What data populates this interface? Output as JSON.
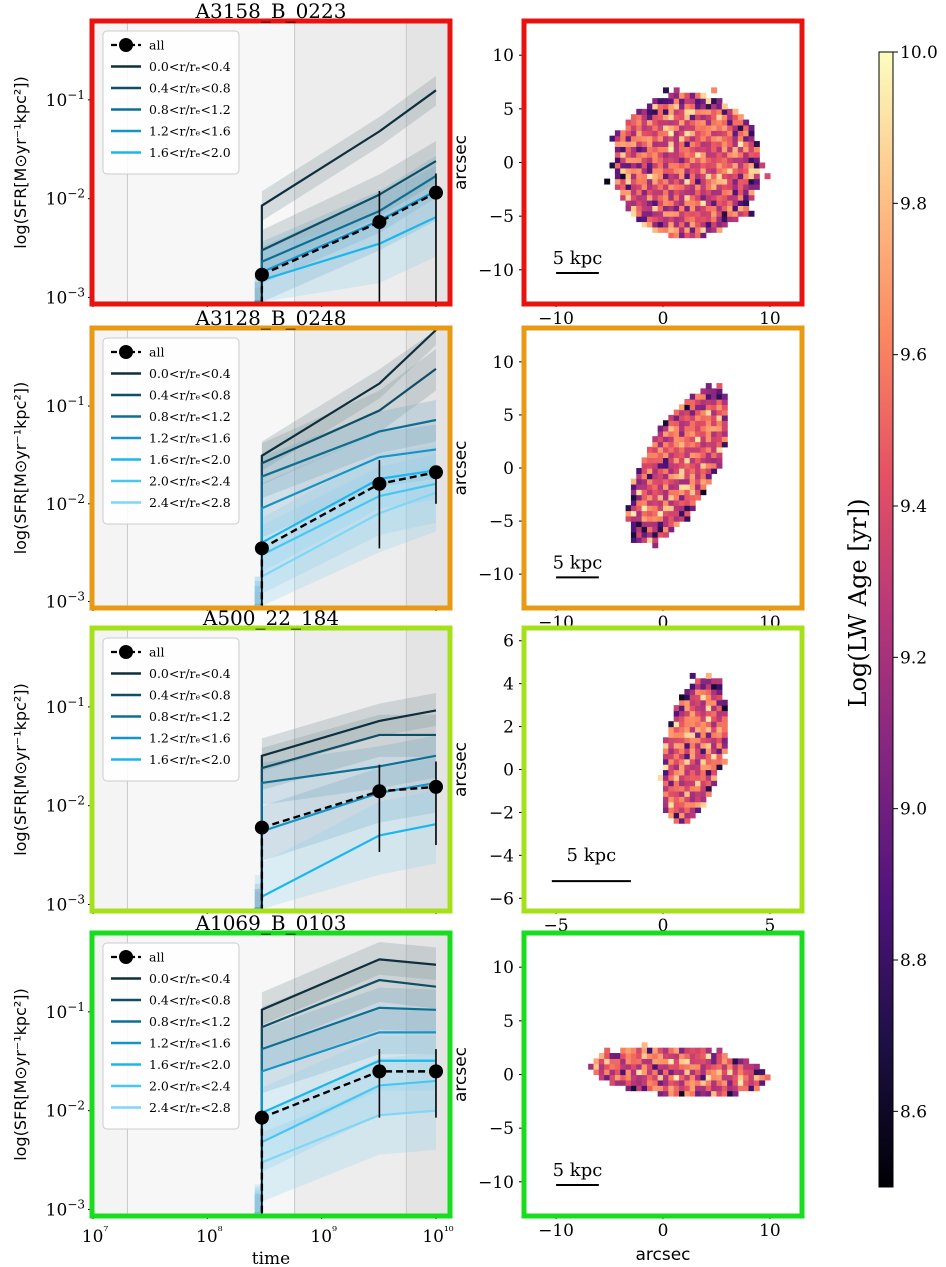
{
  "chart_data": [
    {
      "type": "line",
      "title": "A3158_B_0223",
      "frame_color": "#e8130e",
      "xlabel": "",
      "ylabel": "log(SFR[M⊙yr⁻¹kpc²])",
      "xscale": "log",
      "yscale": "log",
      "xlim": [
        10000000.0,
        13000000000.0
      ],
      "ylim": [
        0.0009,
        0.6
      ],
      "legend_position": "upper-left",
      "series": [
        {
          "name": "all",
          "x": [
            300000000.0,
            3200000000.0,
            10000000000.0
          ],
          "values": [
            0.0017,
            0.0058,
            0.0115
          ],
          "color": "#000000",
          "style": "dashed-markers",
          "err_low": [
            0.0005,
            0.0009,
            0.0009
          ],
          "err_high": [
            0.0017,
            0.012,
            0.018
          ]
        },
        {
          "name": "0.0<r/rₑ<0.4",
          "x": [
            260000000.0,
            300000000.0,
            300000000.0,
            3200000000.0,
            10000000000.0
          ],
          "values": [
            0.0009,
            0.0009,
            0.0085,
            0.048,
            0.125
          ],
          "color": "#0e2f3d",
          "band": [
            0.7,
            1.4
          ]
        },
        {
          "name": "0.4<r/rₑ<0.8",
          "x": [
            260000000.0,
            300000000.0,
            300000000.0,
            3200000000.0,
            10000000000.0
          ],
          "values": [
            0.0009,
            0.0009,
            0.003,
            0.011,
            0.024
          ],
          "color": "#0f4f66",
          "band": [
            0.6,
            1.6
          ]
        },
        {
          "name": "0.8<r/rₑ<1.2",
          "x": [
            260000000.0,
            300000000.0,
            300000000.0,
            3200000000.0,
            10000000000.0
          ],
          "values": [
            0.0009,
            0.0009,
            0.0023,
            0.0075,
            0.017
          ],
          "color": "#0f6f93",
          "band": [
            0.6,
            1.6
          ]
        },
        {
          "name": "1.2<r/rₑ<1.6",
          "x": [
            260000000.0,
            300000000.0,
            300000000.0,
            3200000000.0,
            10000000000.0
          ],
          "values": [
            0.0009,
            0.0009,
            0.0018,
            0.006,
            0.012
          ],
          "color": "#1494c8",
          "band": [
            0.5,
            1.8
          ]
        },
        {
          "name": "1.6<r/rₑ<2.0",
          "x": [
            260000000.0,
            300000000.0,
            300000000.0,
            3200000000.0,
            10000000000.0
          ],
          "values": [
            0.0009,
            0.0009,
            0.0015,
            0.0035,
            0.0065
          ],
          "color": "#1ab7ee",
          "band": [
            0.4,
            2.0
          ]
        }
      ],
      "map": {
        "xlabel": "",
        "ylabel": "arcsec",
        "xlim": [
          -13,
          13
        ],
        "ylim": [
          -13,
          13
        ],
        "xticks": [
          -10,
          0,
          10
        ],
        "yticks": [
          10,
          5,
          0,
          -5,
          -10
        ],
        "scalebar_label": "5 kpc",
        "shape": "circle",
        "center": [
          2,
          -0.5
        ],
        "axes": [
          7,
          6.7
        ],
        "angle": 0
      }
    },
    {
      "type": "line",
      "title": "A3128_B_0248",
      "frame_color": "#e89a13",
      "xlabel": "",
      "ylabel": "log(SFR[M⊙yr⁻¹kpc²])",
      "xscale": "log",
      "yscale": "log",
      "xlim": [
        10000000.0,
        13000000000.0
      ],
      "ylim": [
        0.0009,
        0.6
      ],
      "legend_position": "upper-left",
      "series": [
        {
          "name": "all",
          "x": [
            300000000.0,
            3200000000.0,
            10000000000.0
          ],
          "values": [
            0.0035,
            0.016,
            0.021
          ],
          "color": "#000000",
          "style": "dashed-markers",
          "err_low": [
            0.0009,
            0.0035,
            0.01
          ],
          "err_high": [
            0.0035,
            0.028,
            0.021
          ]
        },
        {
          "name": "0.0<r/rₑ<0.4",
          "x": [
            260000000.0,
            300000000.0,
            300000000.0,
            3200000000.0,
            10000000000.0
          ],
          "values": [
            0.0009,
            0.0009,
            0.031,
            0.17,
            0.6
          ],
          "color": "#0e2f3d",
          "band": [
            0.7,
            1.4
          ]
        },
        {
          "name": "0.4<r/rₑ<0.8",
          "x": [
            260000000.0,
            300000000.0,
            300000000.0,
            3200000000.0,
            10000000000.0
          ],
          "values": [
            0.0009,
            0.0009,
            0.026,
            0.09,
            0.24
          ],
          "color": "#0f4f66",
          "band": [
            0.6,
            1.6
          ]
        },
        {
          "name": "0.8<r/rₑ<1.2",
          "x": [
            260000000.0,
            300000000.0,
            300000000.0,
            3200000000.0,
            10000000000.0
          ],
          "values": [
            0.0009,
            0.0009,
            0.019,
            0.055,
            0.072
          ],
          "color": "#0f6f93",
          "band": [
            0.6,
            1.6
          ]
        },
        {
          "name": "1.2<r/rₑ<1.6",
          "x": [
            260000000.0,
            300000000.0,
            300000000.0,
            3200000000.0,
            10000000000.0
          ],
          "values": [
            0.0009,
            0.0009,
            0.009,
            0.03,
            0.036
          ],
          "color": "#1494c8",
          "band": [
            0.5,
            1.8
          ]
        },
        {
          "name": "1.6<r/rₑ<2.0",
          "x": [
            260000000.0,
            300000000.0,
            300000000.0,
            3200000000.0,
            10000000000.0
          ],
          "values": [
            0.0009,
            0.0009,
            0.004,
            0.018,
            0.022
          ],
          "color": "#1ab7ee",
          "band": [
            0.5,
            1.8
          ]
        },
        {
          "name": "2.0<r/rₑ<2.4",
          "x": [
            260000000.0,
            300000000.0,
            300000000.0,
            3200000000.0,
            10000000000.0
          ],
          "values": [
            0.0009,
            0.0009,
            0.003,
            0.012,
            0.016
          ],
          "color": "#47c6f2",
          "band": [
            0.4,
            2.0
          ]
        },
        {
          "name": "2.4<r/rₑ<2.8",
          "x": [
            260000000.0,
            300000000.0,
            300000000.0,
            3200000000.0,
            10000000000.0
          ],
          "values": [
            0.0009,
            0.0009,
            0.0018,
            0.008,
            0.013
          ],
          "color": "#7fd6f6",
          "band": [
            0.4,
            2.0
          ]
        }
      ],
      "map": {
        "xlabel": "",
        "ylabel": "arcsec",
        "xlim": [
          -13,
          13
        ],
        "ylim": [
          -13,
          13
        ],
        "xticks": [
          -10,
          0,
          10
        ],
        "yticks": [
          10,
          5,
          0,
          -5,
          -10
        ],
        "scalebar_label": "5 kpc",
        "shape": "ellipse",
        "center": [
          1.2,
          0
        ],
        "axes": [
          3.3,
          8.0
        ],
        "angle": -28
      }
    },
    {
      "type": "line",
      "title": "A500_22_184",
      "frame_color": "#a4e11a",
      "xlabel": "",
      "ylabel": "log(SFR[M⊙yr⁻¹kpc²])",
      "xscale": "log",
      "yscale": "log",
      "xlim": [
        10000000.0,
        13000000000.0
      ],
      "ylim": [
        0.0009,
        0.6
      ],
      "legend_position": "upper-left",
      "series": [
        {
          "name": "all",
          "x": [
            300000000.0,
            3200000000.0,
            10000000000.0
          ],
          "values": [
            0.006,
            0.014,
            0.0155
          ],
          "color": "#000000",
          "style": "dashed-markers",
          "err_low": [
            0.0009,
            0.0034,
            0.004
          ],
          "err_high": [
            0.006,
            0.026,
            0.028
          ]
        },
        {
          "name": "0.0<r/rₑ<0.4",
          "x": [
            260000000.0,
            300000000.0,
            300000000.0,
            3200000000.0,
            10000000000.0
          ],
          "values": [
            0.0009,
            0.0009,
            0.032,
            0.072,
            0.092
          ],
          "color": "#0e2f3d",
          "band": [
            0.7,
            1.5
          ]
        },
        {
          "name": "0.4<r/rₑ<0.8",
          "x": [
            260000000.0,
            300000000.0,
            300000000.0,
            3200000000.0,
            10000000000.0
          ],
          "values": [
            0.0009,
            0.0009,
            0.024,
            0.052,
            0.052
          ],
          "color": "#0f4f66",
          "band": [
            0.6,
            1.6
          ]
        },
        {
          "name": "0.8<r/rₑ<1.2",
          "x": [
            260000000.0,
            300000000.0,
            300000000.0,
            3200000000.0,
            10000000000.0
          ],
          "values": [
            0.0009,
            0.0009,
            0.017,
            0.025,
            0.032
          ],
          "color": "#0f6f93",
          "band": [
            0.6,
            1.6
          ]
        },
        {
          "name": "1.2<r/rₑ<1.6",
          "x": [
            260000000.0,
            300000000.0,
            300000000.0,
            3200000000.0,
            10000000000.0
          ],
          "values": [
            0.0009,
            0.0009,
            0.0055,
            0.0135,
            0.017
          ],
          "color": "#1494c8",
          "band": [
            0.5,
            1.8
          ]
        },
        {
          "name": "1.6<r/rₑ<2.0",
          "x": [
            260000000.0,
            300000000.0,
            300000000.0,
            3200000000.0,
            10000000000.0
          ],
          "values": [
            0.0009,
            0.0009,
            0.0012,
            0.005,
            0.0065
          ],
          "color": "#1ab7ee",
          "band": [
            0.4,
            2.2
          ]
        }
      ],
      "map": {
        "xlabel": "",
        "ylabel": "arcsec",
        "xlim": [
          -6.5,
          6.5
        ],
        "ylim": [
          -6.5,
          6.5
        ],
        "xticks": [
          -5,
          0,
          5
        ],
        "yticks": [
          6,
          4,
          2,
          0,
          -2,
          -4,
          -6
        ],
        "scalebar_label": "5 kpc",
        "shape": "ellipse",
        "center": [
          1.3,
          0.8
        ],
        "axes": [
          1.4,
          3.5
        ],
        "angle": -12
      }
    },
    {
      "type": "line",
      "title": "A1069_B_0103",
      "frame_color": "#18dd1c",
      "xlabel": "time",
      "ylabel": "log(SFR[M⊙yr⁻¹kpc²])",
      "xscale": "log",
      "yscale": "log",
      "xlim": [
        10000000.0,
        13000000000.0
      ],
      "ylim": [
        0.0009,
        0.6
      ],
      "xticks": [
        "10⁷",
        "10⁸",
        "10⁹",
        "10¹⁰"
      ],
      "legend_position": "upper-left",
      "series": [
        {
          "name": "all",
          "x": [
            300000000.0,
            3200000000.0,
            10000000000.0
          ],
          "values": [
            0.0085,
            0.025,
            0.025
          ],
          "color": "#000000",
          "style": "dashed-markers",
          "err_low": [
            0.0009,
            0.0085,
            0.0085
          ],
          "err_high": [
            0.0085,
            0.042,
            0.042
          ]
        },
        {
          "name": "0.0<r/rₑ<0.4",
          "x": [
            260000000.0,
            300000000.0,
            300000000.0,
            3200000000.0,
            10000000000.0
          ],
          "values": [
            0.0009,
            0.0009,
            0.105,
            0.34,
            0.3
          ],
          "color": "#0e2f3d",
          "band": [
            0.7,
            1.5
          ]
        },
        {
          "name": "0.4<r/rₑ<0.8",
          "x": [
            260000000.0,
            300000000.0,
            300000000.0,
            3200000000.0,
            10000000000.0
          ],
          "values": [
            0.0009,
            0.0009,
            0.07,
            0.21,
            0.18
          ],
          "color": "#0f4f66",
          "band": [
            0.6,
            1.6
          ]
        },
        {
          "name": "0.8<r/rₑ<1.2",
          "x": [
            260000000.0,
            300000000.0,
            300000000.0,
            3200000000.0,
            10000000000.0
          ],
          "values": [
            0.0009,
            0.0009,
            0.042,
            0.11,
            0.105
          ],
          "color": "#0f6f93",
          "band": [
            0.6,
            1.6
          ]
        },
        {
          "name": "1.2<r/rₑ<1.6",
          "x": [
            260000000.0,
            300000000.0,
            300000000.0,
            3200000000.0,
            10000000000.0
          ],
          "values": [
            0.0009,
            0.0009,
            0.025,
            0.062,
            0.062
          ],
          "color": "#1494c8",
          "band": [
            0.6,
            1.7
          ]
        },
        {
          "name": "1.6<r/rₑ<2.0",
          "x": [
            260000000.0,
            300000000.0,
            300000000.0,
            3200000000.0,
            10000000000.0
          ],
          "values": [
            0.0009,
            0.0009,
            0.0095,
            0.032,
            0.032
          ],
          "color": "#1ab7ee",
          "band": [
            0.5,
            1.8
          ]
        },
        {
          "name": "2.0<r/rₑ<2.4",
          "x": [
            260000000.0,
            300000000.0,
            300000000.0,
            3200000000.0,
            10000000000.0
          ],
          "values": [
            0.0009,
            0.0009,
            0.0048,
            0.018,
            0.02
          ],
          "color": "#47c6f2",
          "band": [
            0.5,
            1.9
          ]
        },
        {
          "name": "2.4<r/rₑ<2.8",
          "x": [
            260000000.0,
            300000000.0,
            300000000.0,
            3200000000.0,
            10000000000.0
          ],
          "values": [
            0.0009,
            0.0009,
            0.003,
            0.009,
            0.01
          ],
          "color": "#7fd6f6",
          "band": [
            0.4,
            2.0
          ]
        }
      ],
      "map": {
        "xlabel": "arcsec",
        "ylabel": "arcsec",
        "xlim": [
          -13,
          13
        ],
        "ylim": [
          -13,
          13
        ],
        "xticks": [
          -10,
          0,
          10
        ],
        "yticks": [
          10,
          5,
          0,
          -5,
          -10
        ],
        "scalebar_label": "5 kpc",
        "shape": "ellipse",
        "center": [
          1.2,
          0
        ],
        "axes": [
          8.4,
          2.2
        ],
        "angle": -4
      }
    }
  ],
  "left_axis": {
    "yticks": [
      {
        "base": "10",
        "exp": "−1",
        "value": 0.1
      },
      {
        "base": "10",
        "exp": "−2",
        "value": 0.01
      },
      {
        "base": "10",
        "exp": "−3",
        "value": 0.001
      }
    ],
    "shade_regions": [
      [
        10000000.0,
        20000000.0
      ],
      [
        20000000.0,
        580000000.0
      ],
      [
        580000000.0,
        5500000000.0
      ],
      [
        5500000000.0,
        13000000000.0
      ]
    ],
    "shade_colors": [
      "#f4f4f4",
      "#f7f7f7",
      "#ededed",
      "#e4e4e4"
    ]
  },
  "colorbar": {
    "label": "Log(LW Age [yr])",
    "min": 8.5,
    "max": 10.0,
    "ticks": [
      "10.0",
      "9.8",
      "9.6",
      "9.4",
      "9.2",
      "9.0",
      "8.8",
      "8.6"
    ],
    "tick_values": [
      10.0,
      9.8,
      9.6,
      9.4,
      9.2,
      9.0,
      8.8,
      8.6
    ],
    "colormap": "magma",
    "colors": [
      "#000004",
      "#1c1044",
      "#4f127b",
      "#812581",
      "#b5367a",
      "#e55064",
      "#fb8761",
      "#fec287",
      "#fcfdbf"
    ]
  }
}
